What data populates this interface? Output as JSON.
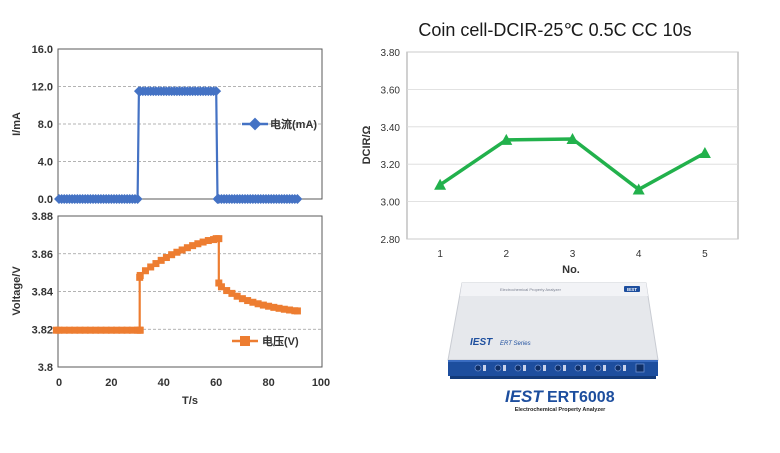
{
  "chart_data": [
    {
      "type": "line",
      "xlabel": "",
      "ylabel": "I/mA",
      "ylim": [
        0,
        16
      ],
      "xlim": [
        0,
        100
      ],
      "yticks": [
        "0.0",
        "4.0",
        "8.0",
        "12.0",
        "16.0"
      ],
      "grid": "horizontal-dashed",
      "legend_position": "right",
      "series": [
        {
          "name": "电流(mA)",
          "color": "#4472C4",
          "marker": "diamond",
          "points": [
            [
              0,
              0
            ],
            [
              1,
              0
            ],
            [
              2,
              0
            ],
            [
              3,
              0
            ],
            [
              4,
              0
            ],
            [
              5,
              0
            ],
            [
              6,
              0
            ],
            [
              7,
              0
            ],
            [
              8,
              0
            ],
            [
              9,
              0
            ],
            [
              10,
              0
            ],
            [
              11,
              0
            ],
            [
              12,
              0
            ],
            [
              13,
              0
            ],
            [
              14,
              0
            ],
            [
              15,
              0
            ],
            [
              16,
              0
            ],
            [
              17,
              0
            ],
            [
              18,
              0
            ],
            [
              19,
              0
            ],
            [
              20,
              0
            ],
            [
              21,
              0
            ],
            [
              22,
              0
            ],
            [
              23,
              0
            ],
            [
              24,
              0
            ],
            [
              25,
              0
            ],
            [
              26,
              0
            ],
            [
              27,
              0
            ],
            [
              28,
              0
            ],
            [
              29,
              0
            ],
            [
              30,
              0
            ],
            [
              30.5,
              11.5
            ],
            [
              31,
              11.5
            ],
            [
              32,
              11.5
            ],
            [
              33,
              11.5
            ],
            [
              34,
              11.5
            ],
            [
              35,
              11.5
            ],
            [
              36,
              11.5
            ],
            [
              37,
              11.5
            ],
            [
              38,
              11.5
            ],
            [
              39,
              11.5
            ],
            [
              40,
              11.5
            ],
            [
              41,
              11.5
            ],
            [
              42,
              11.5
            ],
            [
              43,
              11.5
            ],
            [
              44,
              11.5
            ],
            [
              45,
              11.5
            ],
            [
              46,
              11.5
            ],
            [
              47,
              11.5
            ],
            [
              48,
              11.5
            ],
            [
              49,
              11.5
            ],
            [
              50,
              11.5
            ],
            [
              51,
              11.5
            ],
            [
              52,
              11.5
            ],
            [
              53,
              11.5
            ],
            [
              54,
              11.5
            ],
            [
              55,
              11.5
            ],
            [
              56,
              11.5
            ],
            [
              57,
              11.5
            ],
            [
              58,
              11.5
            ],
            [
              59,
              11.5
            ],
            [
              60,
              11.5
            ],
            [
              60.5,
              0
            ],
            [
              61,
              0
            ],
            [
              62,
              0
            ],
            [
              63,
              0
            ],
            [
              64,
              0
            ],
            [
              65,
              0
            ],
            [
              66,
              0
            ],
            [
              67,
              0
            ],
            [
              68,
              0
            ],
            [
              69,
              0
            ],
            [
              70,
              0
            ],
            [
              71,
              0
            ],
            [
              72,
              0
            ],
            [
              73,
              0
            ],
            [
              74,
              0
            ],
            [
              75,
              0
            ],
            [
              76,
              0
            ],
            [
              77,
              0
            ],
            [
              78,
              0
            ],
            [
              79,
              0
            ],
            [
              80,
              0
            ],
            [
              81,
              0
            ],
            [
              82,
              0
            ],
            [
              83,
              0
            ],
            [
              84,
              0
            ],
            [
              85,
              0
            ],
            [
              86,
              0
            ],
            [
              87,
              0
            ],
            [
              88,
              0
            ],
            [
              89,
              0
            ],
            [
              90,
              0
            ],
            [
              91,
              0
            ]
          ]
        }
      ]
    },
    {
      "type": "line",
      "xlabel": "T/s",
      "ylabel": "Voltage/V",
      "ylim": [
        3.8,
        3.88
      ],
      "xlim": [
        0,
        100
      ],
      "yticks": [
        "3.8",
        "3.82",
        "3.84",
        "3.86",
        "3.88"
      ],
      "xticks": [
        "0",
        "20",
        "40",
        "60",
        "80",
        "100"
      ],
      "grid": "horizontal-dashed",
      "legend_position": "bottom-right",
      "series": [
        {
          "name": "电压(V)",
          "color": "#ED7D31",
          "marker": "square",
          "points": [
            [
              -1,
              3.8195
            ],
            [
              0,
              3.8195
            ],
            [
              2,
              3.8195
            ],
            [
              4,
              3.8195
            ],
            [
              6,
              3.8195
            ],
            [
              8,
              3.8195
            ],
            [
              10,
              3.8195
            ],
            [
              12,
              3.8195
            ],
            [
              14,
              3.8195
            ],
            [
              16,
              3.8195
            ],
            [
              18,
              3.8195
            ],
            [
              20,
              3.8195
            ],
            [
              22,
              3.8195
            ],
            [
              24,
              3.8195
            ],
            [
              26,
              3.8195
            ],
            [
              28,
              3.8195
            ],
            [
              30,
              3.8195
            ],
            [
              31,
              3.8195
            ],
            [
              30.8,
              3.8195
            ],
            [
              30.8,
              3.8475
            ],
            [
              31,
              3.8485
            ],
            [
              33,
              3.851
            ],
            [
              35,
              3.853
            ],
            [
              37,
              3.8548
            ],
            [
              39,
              3.8565
            ],
            [
              41,
              3.858
            ],
            [
              43,
              3.8595
            ],
            [
              45,
              3.8608
            ],
            [
              47,
              3.862
            ],
            [
              49,
              3.8632
            ],
            [
              51,
              3.8643
            ],
            [
              53,
              3.8653
            ],
            [
              55,
              3.8662
            ],
            [
              57,
              3.867
            ],
            [
              59,
              3.8675
            ],
            [
              60,
              3.868
            ],
            [
              61,
              3.868
            ],
            [
              61,
              3.8445
            ],
            [
              62,
              3.8425
            ],
            [
              64,
              3.8405
            ],
            [
              66,
              3.839
            ],
            [
              68,
              3.8375
            ],
            [
              70,
              3.8362
            ],
            [
              72,
              3.8352
            ],
            [
              74,
              3.8343
            ],
            [
              76,
              3.8335
            ],
            [
              78,
              3.8328
            ],
            [
              80,
              3.8322
            ],
            [
              82,
              3.8316
            ],
            [
              84,
              3.8311
            ],
            [
              86,
              3.8306
            ],
            [
              88,
              3.8302
            ],
            [
              90,
              3.8298
            ],
            [
              91,
              3.8297
            ]
          ]
        }
      ]
    },
    {
      "type": "line",
      "title": "Coin cell-DCIR-25℃ 0.5C CC 10s",
      "xlabel": "No.",
      "ylabel": "DCIR/Ω",
      "categories": [
        "1",
        "2",
        "3",
        "4",
        "5"
      ],
      "yticks": [
        "2.80",
        "3.00",
        "3.20",
        "3.40",
        "3.60",
        "3.80"
      ],
      "ylim": [
        2.8,
        3.8
      ],
      "grid": "horizontal",
      "series": [
        {
          "name": "",
          "color": "#22B14C",
          "marker": "triangle",
          "values": [
            3.09,
            3.33,
            3.335,
            3.065,
            3.26
          ]
        }
      ]
    }
  ],
  "device_image": {
    "brand": "IEST",
    "model_line": "ERT Series",
    "model": "ERT6008",
    "subtitle": "Electrochemical Property Analyzer",
    "panel_text": "Electrochemical Property Analyzer",
    "badge_text": "IEST",
    "body_color": "#E9EAEE",
    "panel_color": "#1D4E9E",
    "port_count": 8
  }
}
